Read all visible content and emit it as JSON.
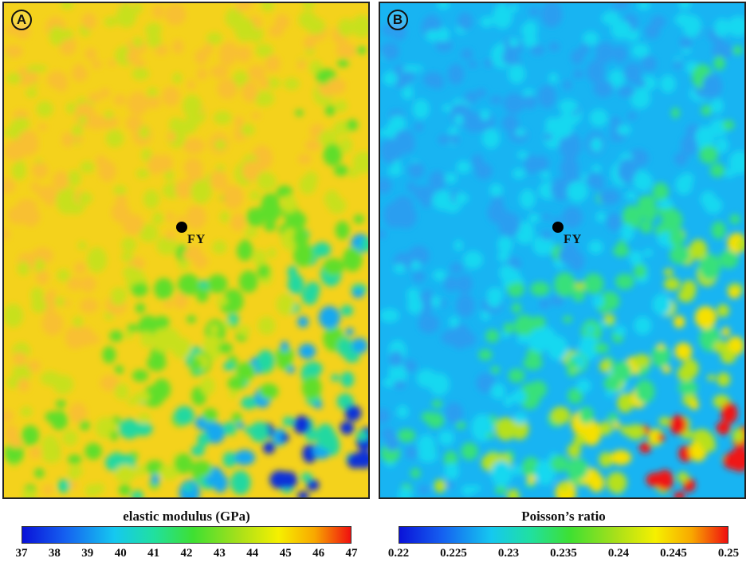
{
  "panels": [
    {
      "id": "A",
      "badge": "A",
      "well_label": "FY",
      "colorbar_title": "elastic modulus (GPa)",
      "colorbar_ticks": [
        "37",
        "38",
        "39",
        "40",
        "41",
        "42",
        "43",
        "44",
        "45",
        "46",
        "47"
      ],
      "colorbar_range": [
        37,
        47
      ]
    },
    {
      "id": "B",
      "badge": "B",
      "well_label": "FY",
      "colorbar_title": "Poisson’s ratio",
      "colorbar_ticks": [
        "0.22",
        "0.225",
        "0.23",
        "0.235",
        "0.24",
        "0.245",
        "0.25"
      ],
      "colorbar_range": [
        0.22,
        0.25
      ]
    }
  ],
  "colormap": [
    "#0a12d8",
    "#1560f0",
    "#15c8f0",
    "#20e0a0",
    "#3ee032",
    "#a8e01a",
    "#f6f000",
    "#f8a800",
    "#f01010"
  ]
}
